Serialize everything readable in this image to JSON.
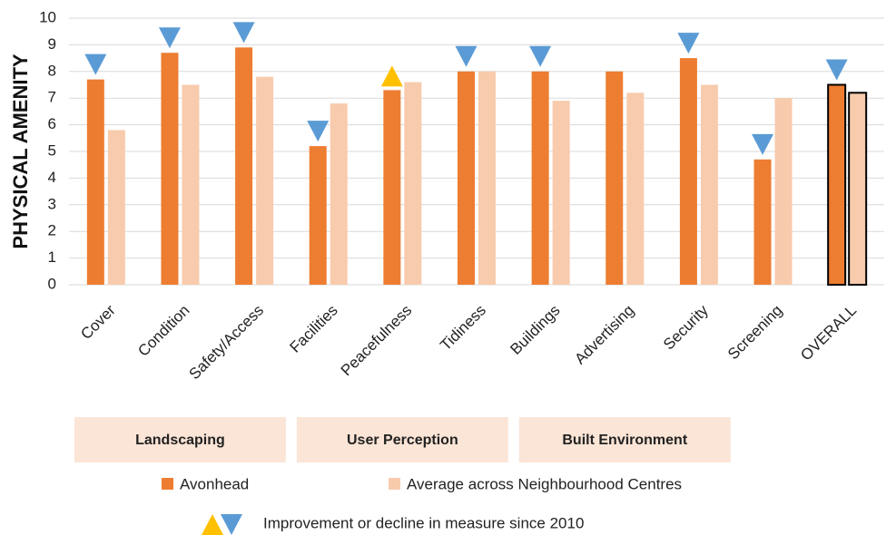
{
  "chart_data": {
    "type": "bar",
    "ylabel": "PHYSICAL AMENITY",
    "categories": [
      "Cover",
      "Condition",
      "Safety/Access",
      "Facilities",
      "Peacefulness",
      "Tidiness",
      "Buildings",
      "Advertising",
      "Security",
      "Screening",
      "OVERALL"
    ],
    "series": [
      {
        "name": "Avonhead",
        "color": "#ed7d31",
        "values": [
          7.7,
          8.7,
          8.9,
          5.2,
          7.3,
          8.0,
          8.0,
          8.0,
          8.5,
          4.7,
          7.5
        ]
      },
      {
        "name": "Average across Neighbourhood Centres",
        "color": "#f8cbad",
        "values": [
          5.8,
          7.5,
          7.8,
          6.8,
          7.6,
          8.0,
          6.9,
          7.2,
          7.5,
          7.0,
          7.2
        ]
      }
    ],
    "markers": [
      "down",
      "down",
      "down",
      "down",
      "up",
      "down",
      "down",
      null,
      "down",
      "down",
      "down"
    ],
    "marker_colors": {
      "up": "#ffc000",
      "down": "#5b9bd5"
    },
    "marker_legend": "Improvement or decline in measure since 2010",
    "outlined_index": 10,
    "groups": [
      {
        "label": "Landscaping",
        "start": 0,
        "end": 2
      },
      {
        "label": "User Perception",
        "start": 3,
        "end": 5
      },
      {
        "label": "Built Environment",
        "start": 6,
        "end": 8
      }
    ],
    "group_color": "#fbe5d6",
    "ylim": [
      0,
      10
    ],
    "yticks": [
      0,
      1,
      2,
      3,
      4,
      5,
      6,
      7,
      8,
      9,
      10
    ],
    "grid": true
  }
}
